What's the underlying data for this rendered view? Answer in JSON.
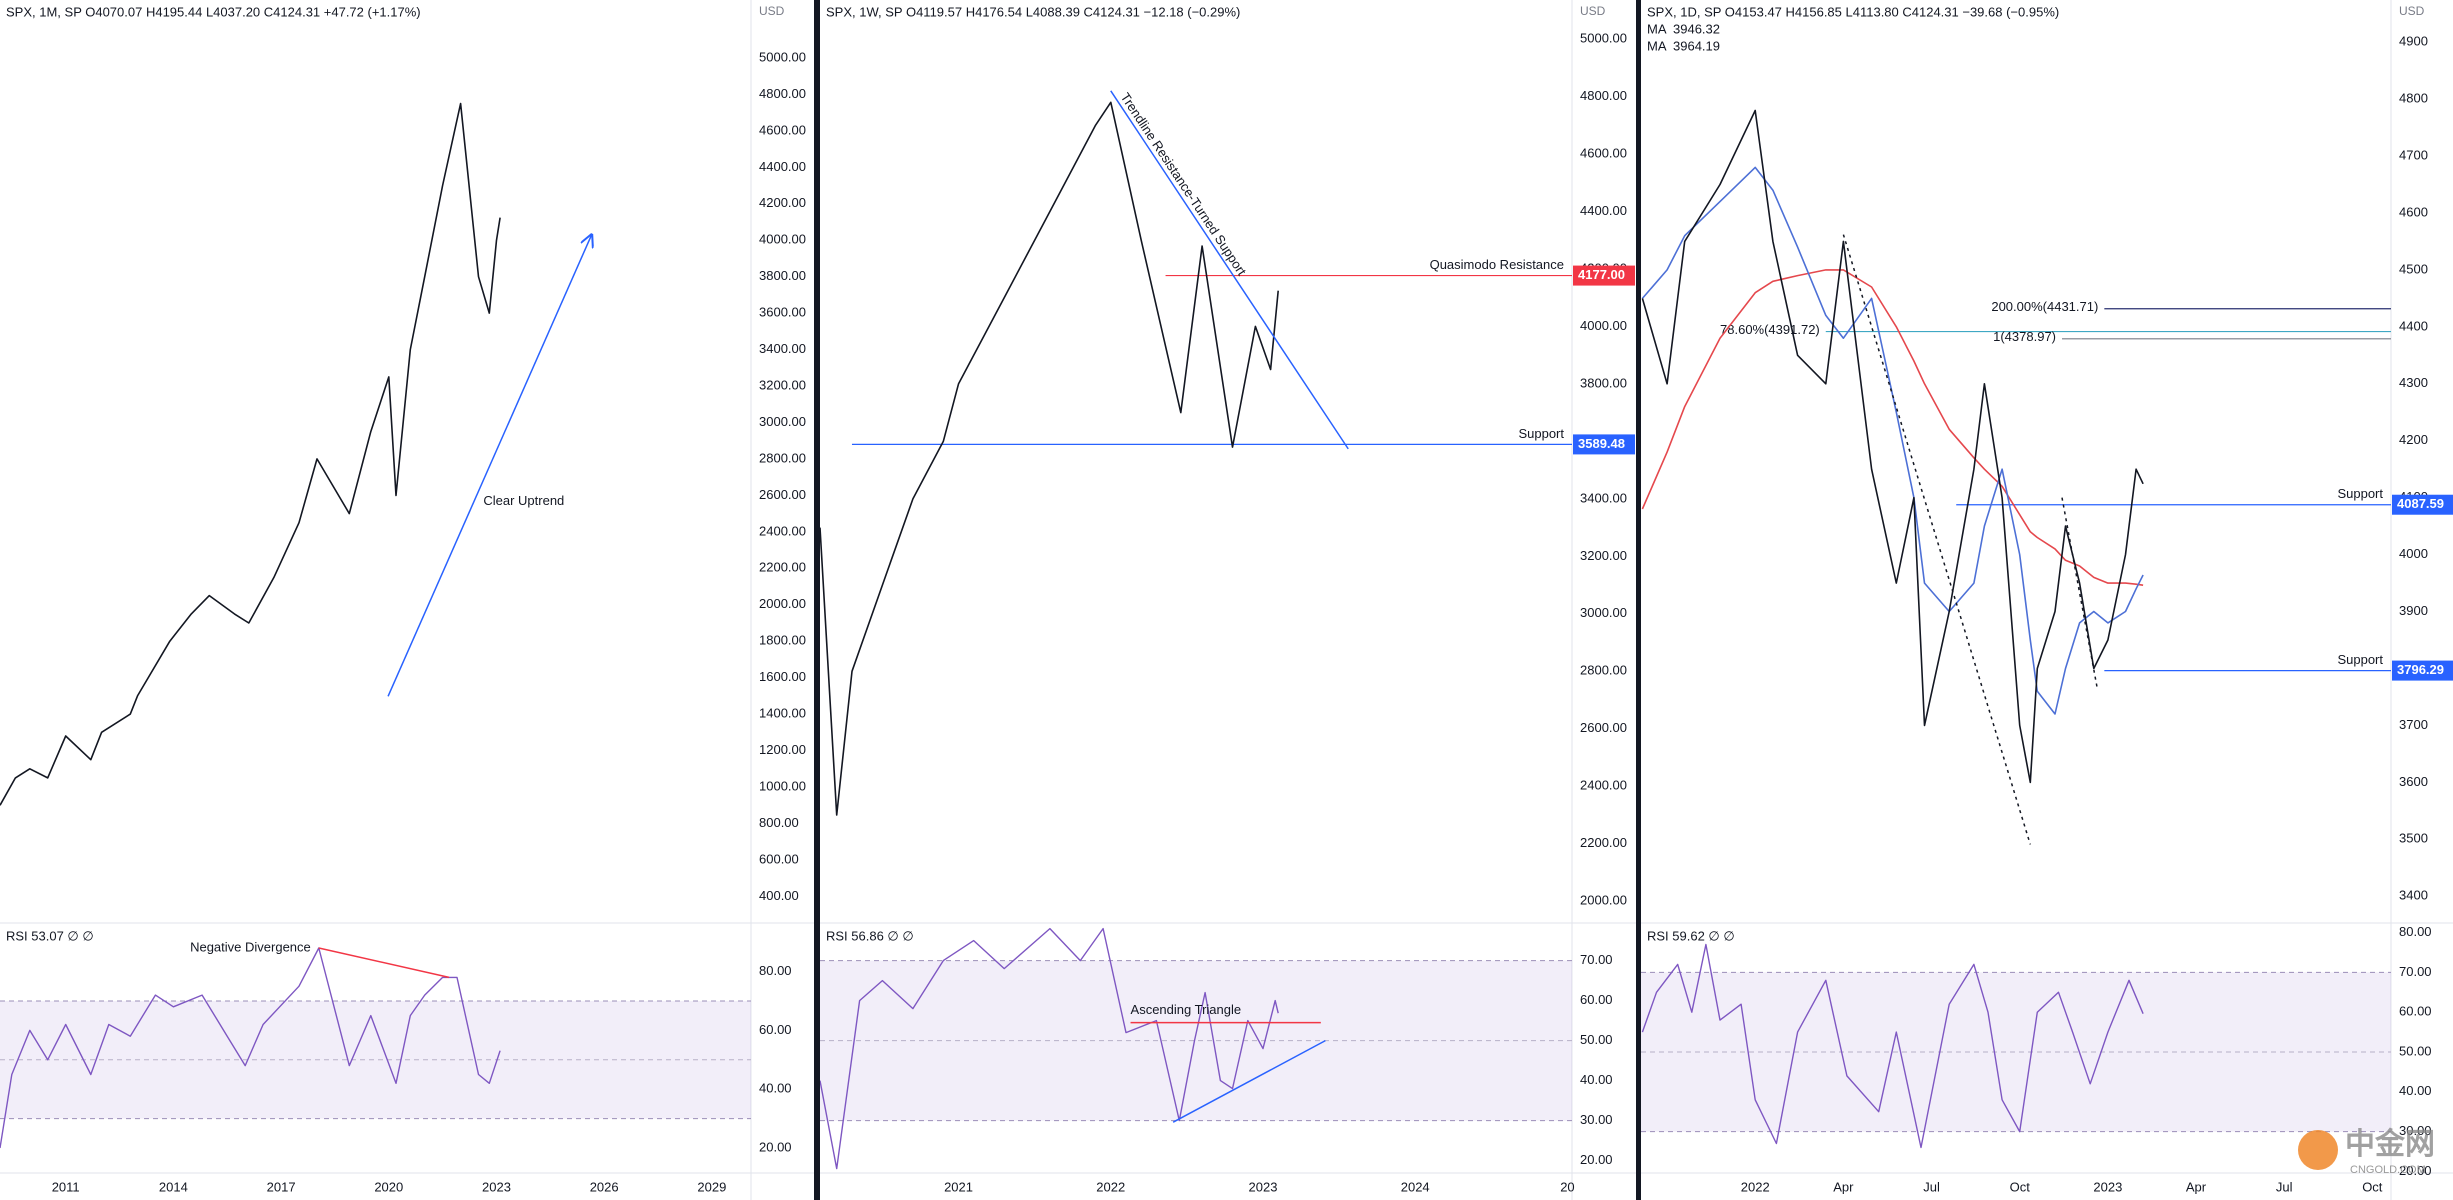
{
  "chart_data": [
    {
      "type": "line",
      "header": "SPX, 1M, SP  O4070.07  H4195.44  L4037.20  C4124.31  +47.72 (+1.17%)",
      "currency": "USD",
      "xlim": [
        2009.17,
        2030.09
      ],
      "xticks": [
        2011,
        2014,
        2017,
        2020,
        2023,
        2026,
        2029
      ],
      "ylim": [
        254,
        5318
      ],
      "yticks": [
        {
          "value": 400,
          "label": "400.00"
        },
        {
          "value": 600,
          "label": "600.00"
        },
        {
          "value": 800,
          "label": "800.00"
        },
        {
          "value": 1000,
          "label": "1000.00"
        },
        {
          "value": 1200,
          "label": "1200.00"
        },
        {
          "value": 1400,
          "label": "1400.00"
        },
        {
          "value": 1600,
          "label": "1600.00"
        },
        {
          "value": 1800,
          "label": "1800.00"
        },
        {
          "value": 2000,
          "label": "2000.00"
        },
        {
          "value": 2200,
          "label": "2200.00"
        },
        {
          "value": 2400,
          "label": "2400.00"
        },
        {
          "value": 2600,
          "label": "2600.00"
        },
        {
          "value": 2800,
          "label": "2800.00"
        },
        {
          "value": 3000,
          "label": "3000.00"
        },
        {
          "value": 3200,
          "label": "3200.00"
        },
        {
          "value": 3400,
          "label": "3400.00"
        },
        {
          "value": 3600,
          "label": "3600.00"
        },
        {
          "value": 3800,
          "label": "3800.00"
        },
        {
          "value": 4000,
          "label": "4000.00"
        },
        {
          "value": 4200,
          "label": "4200.00"
        },
        {
          "value": 4400,
          "label": "4400.00"
        },
        {
          "value": 4600,
          "label": "4600.00"
        },
        {
          "value": 4800,
          "label": "4800.00"
        },
        {
          "value": 5000,
          "label": "5000.00"
        }
      ],
      "x": [
        2009.17,
        2009.6,
        2010,
        2010.5,
        2011,
        2011.7,
        2012,
        2012.8,
        2013,
        2013.9,
        2014.5,
        2015,
        2015.7,
        2016.1,
        2016.8,
        2017.5,
        2018,
        2018.9,
        2019.5,
        2020,
        2020.2,
        2020.6,
        2021,
        2021.5,
        2022,
        2022.5,
        2022.8,
        2023,
        2023.1
      ],
      "values": [
        900,
        1050,
        1100,
        1050,
        1280,
        1150,
        1300,
        1400,
        1500,
        1800,
        1950,
        2050,
        1950,
        1900,
        2150,
        2450,
        2800,
        2500,
        2950,
        3250,
        2600,
        3400,
        3800,
        4300,
        4750,
        3800,
        3600,
        4000,
        4124.31
      ],
      "color": "#131722",
      "lines": [
        {
          "text": "Clear Uptrend",
          "points": [
            [
              2019.98,
              1498
            ],
            [
              2025.65,
              4030
            ]
          ],
          "color": "#2962ff",
          "arrow": true
        }
      ],
      "rsi": {
        "title": "RSI 53.07 ∅ ∅",
        "ylim": [
          11.5,
          96.5
        ],
        "yticks": [
          {
            "value": 20,
            "label": "20.00"
          },
          {
            "value": 40,
            "label": "40.00"
          },
          {
            "value": 60,
            "label": "60.00"
          },
          {
            "value": 80,
            "label": "80.00"
          }
        ],
        "band": [
          30,
          70
        ],
        "mid": 50,
        "color": "#7e57c2",
        "x": [
          2009.17,
          2009.5,
          2010,
          2010.5,
          2011,
          2011.7,
          2012.2,
          2012.8,
          2013.5,
          2014,
          2014.8,
          2015.5,
          2016,
          2016.5,
          2017.5,
          2018.05,
          2018.9,
          2019.5,
          2020.2,
          2020.6,
          2021,
          2021.5,
          2021.9,
          2022.5,
          2022.8,
          2023.1
        ],
        "values": [
          20,
          45,
          60,
          50,
          62,
          45,
          62,
          58,
          72,
          68,
          72,
          58,
          48,
          62,
          75,
          88,
          48,
          65,
          42,
          65,
          72,
          78,
          78,
          45,
          42,
          53.07
        ],
        "lines": [
          {
            "text": "Negative Divergence",
            "points": [
              [
                2018.05,
                88
              ],
              [
                2021.68,
                78
              ]
            ],
            "color": "#f23645"
          }
        ]
      }
    },
    {
      "type": "line",
      "header": "SPX, 1W, SP  O4119.57  H4176.54  L4088.39  C4124.31  −12.18 (−0.29%)",
      "currency": "USD",
      "xlim": [
        2020.09,
        2025.03
      ],
      "xticks": [
        2021,
        2022,
        2023,
        2024,
        {
          "value": 2025,
          "label": "20"
        }
      ],
      "ylim": [
        1924,
        5136
      ],
      "yticks": [
        {
          "value": 2000,
          "label": "2000.00"
        },
        {
          "value": 2200,
          "label": "2200.00"
        },
        {
          "value": 2400,
          "label": "2400.00"
        },
        {
          "value": 2600,
          "label": "2600.00"
        },
        {
          "value": 2800,
          "label": "2800.00"
        },
        {
          "value": 3000,
          "label": "3000.00"
        },
        {
          "value": 3200,
          "label": "3200.00"
        },
        {
          "value": 3400,
          "label": "3400.00"
        },
        {
          "value": 3600,
          "label": "3600.00"
        },
        {
          "value": 3800,
          "label": "3800.00"
        },
        {
          "value": 4000,
          "label": "4000.00"
        },
        {
          "value": 4200,
          "label": "4200.00"
        },
        {
          "value": 4400,
          "label": "4400.00"
        },
        {
          "value": 4600,
          "label": "4600.00"
        },
        {
          "value": 4800,
          "label": "4800.00"
        },
        {
          "value": 5000,
          "label": "5000.00"
        }
      ],
      "x": [
        2020.09,
        2020.2,
        2020.3,
        2020.5,
        2020.7,
        2020.9,
        2021.0,
        2021.3,
        2021.6,
        2021.9,
        2022.0,
        2022.2,
        2022.46,
        2022.6,
        2022.8,
        2022.95,
        2023.05,
        2023.1
      ],
      "values": [
        3300,
        2300,
        2800,
        3100,
        3400,
        3600,
        3800,
        4100,
        4400,
        4700,
        4780,
        4300,
        3700,
        4280,
        3580,
        4000,
        3850,
        4124.31
      ],
      "color": "#131722",
      "levels": [
        {
          "value": 4177,
          "label": "4177.00",
          "text": "Quasimodo Resistance",
          "from": 2022.36,
          "color": "#f23645"
        },
        {
          "value": 3589.48,
          "label": "3589.48",
          "text": "Support",
          "from": 2020.3,
          "color": "#2962ff"
        }
      ],
      "lines": [
        {
          "text": "Trendline Resistance-Turned Support",
          "points": [
            [
              2022.0,
              4820
            ],
            [
              2023.56,
              3574
            ]
          ],
          "color": "#2962ff"
        }
      ],
      "rsi": {
        "title": "RSI 56.86 ∅ ∅",
        "ylim": [
          16.9,
          79.4
        ],
        "yticks": [
          {
            "value": 20,
            "label": "20.00"
          },
          {
            "value": 30,
            "label": "30.00"
          },
          {
            "value": 40,
            "label": "40.00"
          },
          {
            "value": 50,
            "label": "50.00"
          },
          {
            "value": 60,
            "label": "60.00"
          },
          {
            "value": 70,
            "label": "70.00"
          }
        ],
        "band": [
          30,
          70
        ],
        "mid": 50,
        "color": "#7e57c2",
        "x": [
          2020.09,
          2020.2,
          2020.35,
          2020.5,
          2020.7,
          2020.9,
          2021.1,
          2021.3,
          2021.6,
          2021.8,
          2021.95,
          2022.1,
          2022.3,
          2022.45,
          2022.55,
          2022.62,
          2022.72,
          2022.8,
          2022.9,
          2023.0,
          2023.08,
          2023.1
        ],
        "values": [
          40,
          18,
          60,
          65,
          58,
          70,
          75,
          68,
          78,
          70,
          78,
          52,
          55,
          30,
          50,
          62,
          40,
          38,
          55,
          48,
          60,
          56.86
        ],
        "lines": [
          {
            "text": "Ascending Triangle",
            "points": [
              [
                2022.13,
                54.5
              ],
              [
                2023.38,
                54.5
              ]
            ],
            "color": "#f23645"
          },
          {
            "points": [
              [
                2022.41,
                29.6
              ],
              [
                2023.41,
                50
              ]
            ],
            "color": "#2962ff"
          }
        ]
      }
    },
    {
      "type": "line",
      "header": "SPX, 1D, SP  O4153.47  H4156.85  L4113.80  C4124.31  −39.68 (−0.95%)",
      "currency": "USD",
      "xlim": [
        2021.676,
        2023.803
      ],
      "xticks": [
        2022,
        {
          "value": 2022.25,
          "label": "Apr"
        },
        {
          "value": 2022.5,
          "label": "Jul"
        },
        {
          "value": 2022.75,
          "label": "Oct"
        },
        2023,
        {
          "value": 2023.25,
          "label": "Apr"
        },
        {
          "value": 2023.5,
          "label": "Jul"
        },
        {
          "value": 2023.75,
          "label": "Oct"
        }
      ],
      "ylim": [
        3353,
        4974
      ],
      "yticks": [
        3400,
        3500,
        3600,
        3700,
        3800,
        3900,
        4000,
        4100,
        4200,
        4300,
        4400,
        4500,
        4600,
        4700,
        4800,
        4900
      ],
      "x": [
        2021.68,
        2021.75,
        2021.8,
        2021.9,
        2022.0,
        2022.05,
        2022.12,
        2022.2,
        2022.25,
        2022.33,
        2022.4,
        2022.45,
        2022.48,
        2022.55,
        2022.62,
        2022.65,
        2022.7,
        2022.75,
        2022.78,
        2022.8,
        2022.85,
        2022.88,
        2022.92,
        2022.96,
        2023.0,
        2023.05,
        2023.08,
        2023.1
      ],
      "values": [
        4450,
        4300,
        4550,
        4650,
        4780,
        4550,
        4350,
        4300,
        4550,
        4150,
        3950,
        4100,
        3700,
        3900,
        4150,
        4300,
        4100,
        3700,
        3600,
        3800,
        3900,
        4050,
        3950,
        3800,
        3850,
        4000,
        4150,
        4124.31
      ],
      "color": "#131722",
      "ma": [
        {
          "name": "MA",
          "last": "3946.32",
          "color": "#e5484d",
          "values": [
            4080,
            4180,
            4260,
            4380,
            4460,
            4480,
            4490,
            4500,
            4500,
            4470,
            4400,
            4340,
            4300,
            4220,
            4170,
            4150,
            4120,
            4070,
            4040,
            4030,
            4010,
            3990,
            3980,
            3960,
            3950,
            3950,
            3948,
            3946.32
          ]
        },
        {
          "name": "MA",
          "last": "3964.19",
          "color": "#4d70d6",
          "values": [
            4450,
            4500,
            4560,
            4620,
            4680,
            4640,
            4540,
            4420,
            4380,
            4450,
            4250,
            4100,
            3950,
            3900,
            3950,
            4050,
            4150,
            4000,
            3850,
            3760,
            3720,
            3800,
            3880,
            3900,
            3880,
            3900,
            3940,
            3964.19
          ]
        }
      ],
      "levels": [
        {
          "value": 4431.71,
          "text": "200.00%(4431.71)",
          "from": 2022.99,
          "color": "#2a3170"
        },
        {
          "value": 4391.72,
          "text": "78.60%(4391.72)",
          "from": 2022.2,
          "color": "#3fa8c4"
        },
        {
          "value": 4378.97,
          "text": "1(4378.97)",
          "from": 2022.87,
          "color": "#787b86"
        },
        {
          "value": 4087.59,
          "label": "4087.59",
          "text": "Support",
          "from": 2022.57,
          "color": "#2962ff"
        },
        {
          "value": 3796.29,
          "label": "3796.29",
          "text": "Support",
          "from": 2022.99,
          "color": "#2962ff"
        }
      ],
      "lines": [
        {
          "points": [
            [
              2022.25,
              4562
            ],
            [
              2022.78,
              3491
            ]
          ],
          "color": "#131722",
          "dashed": true
        },
        {
          "points": [
            [
              2022.87,
              4100
            ],
            [
              2022.97,
              3765
            ]
          ],
          "color": "#131722",
          "dashed": true
        }
      ],
      "rsi": {
        "title": "RSI 59.62 ∅ ∅",
        "ylim": [
          19.6,
          82.4
        ],
        "yticks": [
          {
            "value": 20,
            "label": "20.00"
          },
          {
            "value": 30,
            "label": "30.00"
          },
          {
            "value": 40,
            "label": "40.00"
          },
          {
            "value": 50,
            "label": "50.00"
          },
          {
            "value": 60,
            "label": "60.00"
          },
          {
            "value": 70,
            "label": "70.00"
          },
          {
            "value": 80,
            "label": "80.00"
          }
        ],
        "band": [
          30,
          70
        ],
        "mid": 50,
        "color": "#7e57c2",
        "x": [
          2021.68,
          2021.72,
          2021.78,
          2021.82,
          2021.86,
          2021.9,
          2021.96,
          2022.0,
          2022.06,
          2022.12,
          2022.2,
          2022.26,
          2022.35,
          2022.4,
          2022.47,
          2022.55,
          2022.62,
          2022.66,
          2022.7,
          2022.75,
          2022.8,
          2022.86,
          2022.9,
          2022.95,
          2023.0,
          2023.06,
          2023.1
        ],
        "values": [
          55,
          65,
          72,
          60,
          77,
          58,
          62,
          38,
          27,
          55,
          68,
          44,
          35,
          55,
          26,
          62,
          72,
          60,
          38,
          30,
          60,
          65,
          55,
          42,
          55,
          68,
          59.62
        ],
        "lines": []
      }
    }
  ],
  "watermark": {
    "main": "中金网",
    "sub": "CNGOLD.COM"
  }
}
